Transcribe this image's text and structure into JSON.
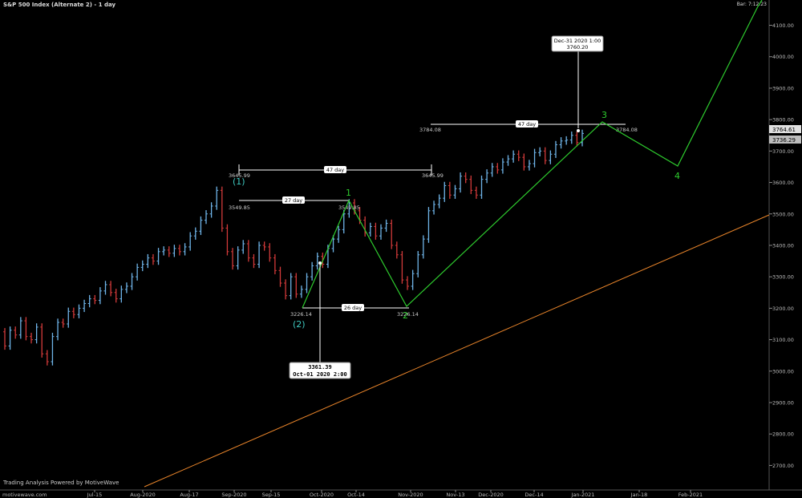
{
  "header": {
    "title": "S&P 500 Index (Alternate 2) - 1 day",
    "clock": "Bar: 7:12:23"
  },
  "footer": {
    "powered_by": "Trading Analysis Powered by MotiveWave"
  },
  "colors": {
    "up_bar": "#6fb4e8",
    "down_bar": "#d23a3a",
    "wave_line": "#2ecc2e",
    "trend_line": "#e8842a",
    "cycle_label": "#3fc9c0",
    "measure_line": "#ffffff"
  },
  "chart_data": {
    "type": "ohlc",
    "y_axis": {
      "min": 2650,
      "max": 4160,
      "ticks": [
        "2700.00",
        "2800.00",
        "2900.00",
        "3000.00",
        "3100.00",
        "3200.00",
        "3300.00",
        "3400.00",
        "3500.00",
        "3600.00",
        "3700.00",
        "3800.00",
        "3900.00",
        "4000.00",
        "4100.00"
      ]
    },
    "price_tags": {
      "last": "3764.61",
      "previous": "3736.29"
    },
    "x_axis": {
      "labels": [
        "Jul-15",
        "Aug-2020",
        "Aug-17",
        "Sep-2020",
        "Sep-15",
        "Oct-2020",
        "Oct-14",
        "Nov-2020",
        "Nov-13",
        "Dec-2020",
        "Dec-14",
        "Jan-2021",
        "Jan-18",
        "Feb-2021"
      ],
      "watermark": "motivewave.com"
    },
    "bars": [
      {
        "o": 3125,
        "c": 3080
      },
      {
        "o": 3080,
        "c": 3130
      },
      {
        "o": 3130,
        "c": 3115
      },
      {
        "o": 3115,
        "c": 3160
      },
      {
        "o": 3160,
        "c": 3110
      },
      {
        "o": 3110,
        "c": 3100
      },
      {
        "o": 3100,
        "c": 3140
      },
      {
        "o": 3140,
        "c": 3055
      },
      {
        "o": 3055,
        "c": 3030
      },
      {
        "o": 3030,
        "c": 3110
      },
      {
        "o": 3110,
        "c": 3155
      },
      {
        "o": 3155,
        "c": 3150
      },
      {
        "o": 3150,
        "c": 3190
      },
      {
        "o": 3190,
        "c": 3180
      },
      {
        "o": 3180,
        "c": 3200
      },
      {
        "o": 3200,
        "c": 3215
      },
      {
        "o": 3215,
        "c": 3230
      },
      {
        "o": 3230,
        "c": 3225
      },
      {
        "o": 3225,
        "c": 3255
      },
      {
        "o": 3255,
        "c": 3275
      },
      {
        "o": 3275,
        "c": 3250
      },
      {
        "o": 3250,
        "c": 3230
      },
      {
        "o": 3230,
        "c": 3260
      },
      {
        "o": 3260,
        "c": 3270
      },
      {
        "o": 3270,
        "c": 3300
      },
      {
        "o": 3300,
        "c": 3330
      },
      {
        "o": 3330,
        "c": 3340
      },
      {
        "o": 3340,
        "c": 3360
      },
      {
        "o": 3360,
        "c": 3350
      },
      {
        "o": 3350,
        "c": 3380
      },
      {
        "o": 3380,
        "c": 3385
      },
      {
        "o": 3385,
        "c": 3375
      },
      {
        "o": 3375,
        "c": 3390
      },
      {
        "o": 3390,
        "c": 3380
      },
      {
        "o": 3380,
        "c": 3395
      },
      {
        "o": 3395,
        "c": 3430
      },
      {
        "o": 3430,
        "c": 3445
      },
      {
        "o": 3445,
        "c": 3480
      },
      {
        "o": 3480,
        "c": 3500
      },
      {
        "o": 3500,
        "c": 3525
      },
      {
        "o": 3525,
        "c": 3575
      },
      {
        "o": 3575,
        "c": 3455
      },
      {
        "o": 3455,
        "c": 3380
      },
      {
        "o": 3380,
        "c": 3335
      },
      {
        "o": 3335,
        "c": 3385
      },
      {
        "o": 3385,
        "c": 3405
      },
      {
        "o": 3405,
        "c": 3360
      },
      {
        "o": 3360,
        "c": 3340
      },
      {
        "o": 3340,
        "c": 3400
      },
      {
        "o": 3400,
        "c": 3395
      },
      {
        "o": 3395,
        "c": 3360
      },
      {
        "o": 3360,
        "c": 3320
      },
      {
        "o": 3320,
        "c": 3280
      },
      {
        "o": 3280,
        "c": 3240
      },
      {
        "o": 3240,
        "c": 3300
      },
      {
        "o": 3300,
        "c": 3245
      },
      {
        "o": 3245,
        "c": 3260
      },
      {
        "o": 3260,
        "c": 3300
      },
      {
        "o": 3300,
        "c": 3335
      },
      {
        "o": 3335,
        "c": 3365
      },
      {
        "o": 3365,
        "c": 3340
      },
      {
        "o": 3340,
        "c": 3390
      },
      {
        "o": 3390,
        "c": 3420
      },
      {
        "o": 3420,
        "c": 3450
      },
      {
        "o": 3450,
        "c": 3500
      },
      {
        "o": 3500,
        "c": 3535
      },
      {
        "o": 3535,
        "c": 3510
      },
      {
        "o": 3510,
        "c": 3480
      },
      {
        "o": 3480,
        "c": 3440
      },
      {
        "o": 3440,
        "c": 3460
      },
      {
        "o": 3460,
        "c": 3430
      },
      {
        "o": 3430,
        "c": 3455
      },
      {
        "o": 3455,
        "c": 3470
      },
      {
        "o": 3470,
        "c": 3400
      },
      {
        "o": 3400,
        "c": 3370
      },
      {
        "o": 3370,
        "c": 3290
      },
      {
        "o": 3290,
        "c": 3270
      },
      {
        "o": 3270,
        "c": 3310
      },
      {
        "o": 3310,
        "c": 3370
      },
      {
        "o": 3370,
        "c": 3420
      },
      {
        "o": 3420,
        "c": 3510
      },
      {
        "o": 3510,
        "c": 3530
      },
      {
        "o": 3530,
        "c": 3550
      },
      {
        "o": 3550,
        "c": 3590
      },
      {
        "o": 3590,
        "c": 3560
      },
      {
        "o": 3560,
        "c": 3580
      },
      {
        "o": 3580,
        "c": 3620
      },
      {
        "o": 3620,
        "c": 3610
      },
      {
        "o": 3610,
        "c": 3575
      },
      {
        "o": 3575,
        "c": 3560
      },
      {
        "o": 3560,
        "c": 3610
      },
      {
        "o": 3610,
        "c": 3630
      },
      {
        "o": 3630,
        "c": 3650
      },
      {
        "o": 3650,
        "c": 3640
      },
      {
        "o": 3640,
        "c": 3665
      },
      {
        "o": 3665,
        "c": 3675
      },
      {
        "o": 3675,
        "c": 3690
      },
      {
        "o": 3690,
        "c": 3680
      },
      {
        "o": 3680,
        "c": 3650
      },
      {
        "o": 3650,
        "c": 3660
      },
      {
        "o": 3660,
        "c": 3695
      },
      {
        "o": 3695,
        "c": 3700
      },
      {
        "o": 3700,
        "c": 3670
      },
      {
        "o": 3670,
        "c": 3690
      },
      {
        "o": 3690,
        "c": 3720
      },
      {
        "o": 3720,
        "c": 3732
      },
      {
        "o": 3732,
        "c": 3735
      },
      {
        "o": 3735,
        "c": 3750
      },
      {
        "o": 3750,
        "c": 3727
      },
      {
        "o": 3727,
        "c": 3756
      }
    ],
    "annotations": {
      "measure_47_day_upper": {
        "label": "47 day",
        "left_value": "3784.08",
        "right_value": "3784.08"
      },
      "measure_47_day_lower": {
        "label": "47 day",
        "left_value": "3645.99",
        "right_value": "3645.99"
      },
      "measure_27_day": {
        "label": "27 day",
        "left_value": "3549.85",
        "right_value": "3549.85"
      },
      "measure_26_day": {
        "label": "26 day",
        "left_value": "3226.14",
        "right_value": "3226.14"
      },
      "callout_top": {
        "date": "Dec-31 2020 1:00",
        "price": "3760.20"
      },
      "callout_bottom": {
        "price": "3361.39",
        "date": "Oct-01 2020 2:00"
      },
      "cycle_labels": {
        "one": "(1)",
        "two": "(2)"
      },
      "wave_labels": {
        "w1": "1",
        "w2": "2",
        "w3": "3",
        "w4": "4"
      }
    }
  }
}
